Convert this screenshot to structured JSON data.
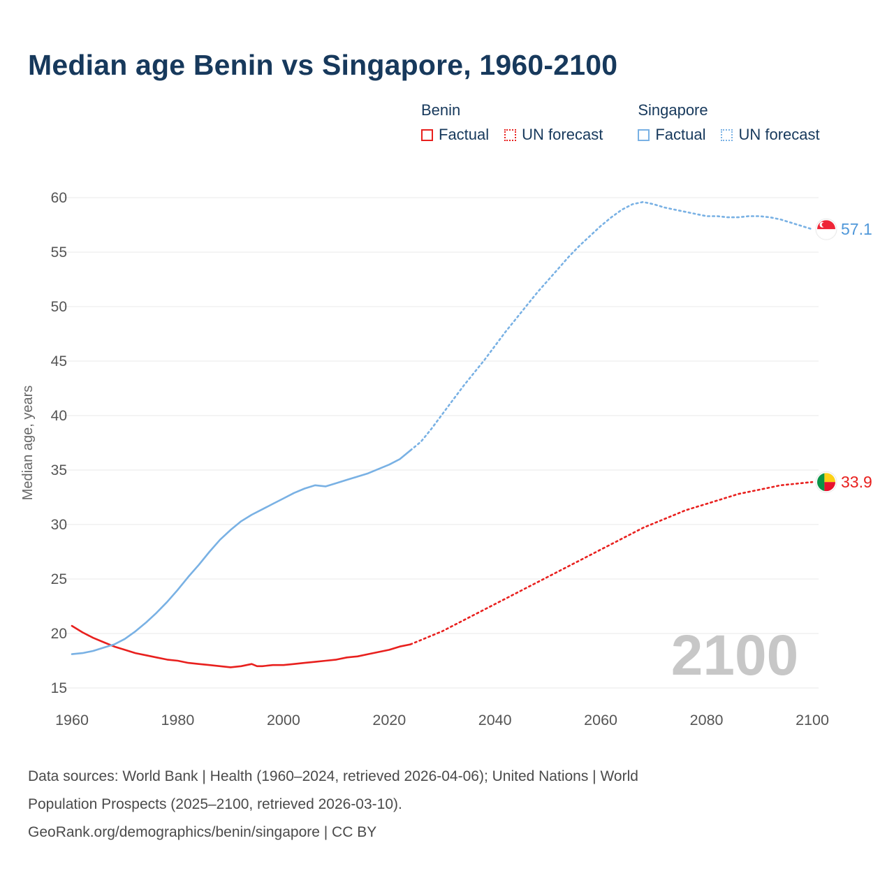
{
  "title": "Median age Benin vs Singapore, 1960-2100",
  "ylabel": "Median age, years",
  "watermark": "2100",
  "legend": {
    "benin_label": "Benin",
    "singapore_label": "Singapore",
    "factual_label": "Factual",
    "forecast_label": "UN forecast"
  },
  "end_labels": {
    "singapore_value": "57.1",
    "benin_value": "33.9"
  },
  "footer": {
    "line1": "Data sources: World Bank | Health (1960–2024, retrieved 2026-04-06); United Nations | World",
    "line2": "Population Prospects (2025–2100, retrieved 2026-03-10).",
    "line3": "GeoRank.org/demographics/benin/singapore | CC BY"
  },
  "colors": {
    "benin": "#e8201e",
    "singapore": "#79b1e4",
    "singapore_text": "#4f97d9",
    "title_text": "#17395c",
    "axis_text": "#555555",
    "grid": "#e8e8e8",
    "watermark": "#c7c7c7",
    "footer_text": "#4a4a4a"
  },
  "chart_data": {
    "type": "line",
    "title": "Median age Benin vs Singapore, 1960-2100",
    "xlabel": "",
    "ylabel": "Median age, years",
    "x_ticks": [
      1960,
      1980,
      2000,
      2020,
      2040,
      2060,
      2080,
      2100
    ],
    "y_ticks": [
      15,
      20,
      25,
      30,
      35,
      40,
      45,
      50,
      55,
      60
    ],
    "xlim": [
      1960,
      2100
    ],
    "ylim": [
      15,
      60
    ],
    "grid": true,
    "legend_position": "top",
    "series": [
      {
        "name": "Benin Factual",
        "style": "solid",
        "color": "#e8201e",
        "points": [
          [
            1960,
            20.7
          ],
          [
            1962,
            20.1
          ],
          [
            1964,
            19.6
          ],
          [
            1966,
            19.2
          ],
          [
            1968,
            18.8
          ],
          [
            1970,
            18.5
          ],
          [
            1972,
            18.2
          ],
          [
            1974,
            18.0
          ],
          [
            1976,
            17.8
          ],
          [
            1978,
            17.6
          ],
          [
            1980,
            17.5
          ],
          [
            1982,
            17.3
          ],
          [
            1984,
            17.2
          ],
          [
            1986,
            17.1
          ],
          [
            1988,
            17.0
          ],
          [
            1990,
            16.9
          ],
          [
            1992,
            17.0
          ],
          [
            1994,
            17.2
          ],
          [
            1995,
            17.0
          ],
          [
            1996,
            17.0
          ],
          [
            1998,
            17.1
          ],
          [
            2000,
            17.1
          ],
          [
            2002,
            17.2
          ],
          [
            2004,
            17.3
          ],
          [
            2006,
            17.4
          ],
          [
            2008,
            17.5
          ],
          [
            2010,
            17.6
          ],
          [
            2012,
            17.8
          ],
          [
            2014,
            17.9
          ],
          [
            2016,
            18.1
          ],
          [
            2018,
            18.3
          ],
          [
            2020,
            18.5
          ],
          [
            2022,
            18.8
          ],
          [
            2024,
            19.0
          ]
        ]
      },
      {
        "name": "Benin UN forecast",
        "style": "dotted",
        "color": "#e8201e",
        "points": [
          [
            2024,
            19.0
          ],
          [
            2026,
            19.4
          ],
          [
            2028,
            19.8
          ],
          [
            2030,
            20.2
          ],
          [
            2032,
            20.7
          ],
          [
            2034,
            21.2
          ],
          [
            2036,
            21.7
          ],
          [
            2038,
            22.2
          ],
          [
            2040,
            22.7
          ],
          [
            2042,
            23.2
          ],
          [
            2044,
            23.7
          ],
          [
            2046,
            24.2
          ],
          [
            2048,
            24.7
          ],
          [
            2050,
            25.2
          ],
          [
            2052,
            25.7
          ],
          [
            2054,
            26.2
          ],
          [
            2056,
            26.7
          ],
          [
            2058,
            27.2
          ],
          [
            2060,
            27.7
          ],
          [
            2062,
            28.2
          ],
          [
            2064,
            28.7
          ],
          [
            2066,
            29.2
          ],
          [
            2068,
            29.7
          ],
          [
            2070,
            30.1
          ],
          [
            2072,
            30.5
          ],
          [
            2074,
            30.9
          ],
          [
            2076,
            31.3
          ],
          [
            2078,
            31.6
          ],
          [
            2080,
            31.9
          ],
          [
            2082,
            32.2
          ],
          [
            2084,
            32.5
          ],
          [
            2086,
            32.8
          ],
          [
            2088,
            33.0
          ],
          [
            2090,
            33.2
          ],
          [
            2092,
            33.4
          ],
          [
            2094,
            33.6
          ],
          [
            2096,
            33.7
          ],
          [
            2098,
            33.8
          ],
          [
            2100,
            33.9
          ]
        ]
      },
      {
        "name": "Singapore Factual",
        "style": "solid",
        "color": "#79b1e4",
        "points": [
          [
            1960,
            18.1
          ],
          [
            1962,
            18.2
          ],
          [
            1964,
            18.4
          ],
          [
            1966,
            18.7
          ],
          [
            1968,
            19.0
          ],
          [
            1970,
            19.5
          ],
          [
            1972,
            20.2
          ],
          [
            1974,
            21.0
          ],
          [
            1976,
            21.9
          ],
          [
            1978,
            22.9
          ],
          [
            1980,
            24.0
          ],
          [
            1982,
            25.2
          ],
          [
            1984,
            26.3
          ],
          [
            1986,
            27.5
          ],
          [
            1988,
            28.6
          ],
          [
            1990,
            29.5
          ],
          [
            1992,
            30.3
          ],
          [
            1994,
            30.9
          ],
          [
            1996,
            31.4
          ],
          [
            1998,
            31.9
          ],
          [
            2000,
            32.4
          ],
          [
            2002,
            32.9
          ],
          [
            2004,
            33.3
          ],
          [
            2006,
            33.6
          ],
          [
            2008,
            33.5
          ],
          [
            2010,
            33.8
          ],
          [
            2012,
            34.1
          ],
          [
            2014,
            34.4
          ],
          [
            2016,
            34.7
          ],
          [
            2018,
            35.1
          ],
          [
            2020,
            35.5
          ],
          [
            2022,
            36.0
          ],
          [
            2024,
            36.8
          ]
        ]
      },
      {
        "name": "Singapore UN forecast",
        "style": "dotted",
        "color": "#79b1e4",
        "points": [
          [
            2024,
            36.8
          ],
          [
            2026,
            37.6
          ],
          [
            2028,
            38.8
          ],
          [
            2030,
            40.1
          ],
          [
            2032,
            41.4
          ],
          [
            2034,
            42.7
          ],
          [
            2036,
            43.9
          ],
          [
            2038,
            45.1
          ],
          [
            2040,
            46.4
          ],
          [
            2042,
            47.7
          ],
          [
            2044,
            48.9
          ],
          [
            2046,
            50.1
          ],
          [
            2048,
            51.3
          ],
          [
            2050,
            52.4
          ],
          [
            2052,
            53.5
          ],
          [
            2054,
            54.6
          ],
          [
            2056,
            55.6
          ],
          [
            2058,
            56.5
          ],
          [
            2060,
            57.4
          ],
          [
            2062,
            58.2
          ],
          [
            2064,
            58.9
          ],
          [
            2066,
            59.4
          ],
          [
            2068,
            59.6
          ],
          [
            2070,
            59.4
          ],
          [
            2072,
            59.1
          ],
          [
            2074,
            58.9
          ],
          [
            2076,
            58.7
          ],
          [
            2078,
            58.5
          ],
          [
            2080,
            58.3
          ],
          [
            2082,
            58.3
          ],
          [
            2084,
            58.2
          ],
          [
            2086,
            58.2
          ],
          [
            2088,
            58.3
          ],
          [
            2090,
            58.3
          ],
          [
            2092,
            58.2
          ],
          [
            2094,
            58.0
          ],
          [
            2096,
            57.7
          ],
          [
            2098,
            57.4
          ],
          [
            2100,
            57.1
          ]
        ]
      }
    ],
    "end_markers": [
      {
        "series": "Singapore",
        "flag": "singapore",
        "year": 2100,
        "value": 57.1,
        "label": "57.1"
      },
      {
        "series": "Benin",
        "flag": "benin",
        "year": 2100,
        "value": 33.9,
        "label": "33.9"
      }
    ]
  }
}
